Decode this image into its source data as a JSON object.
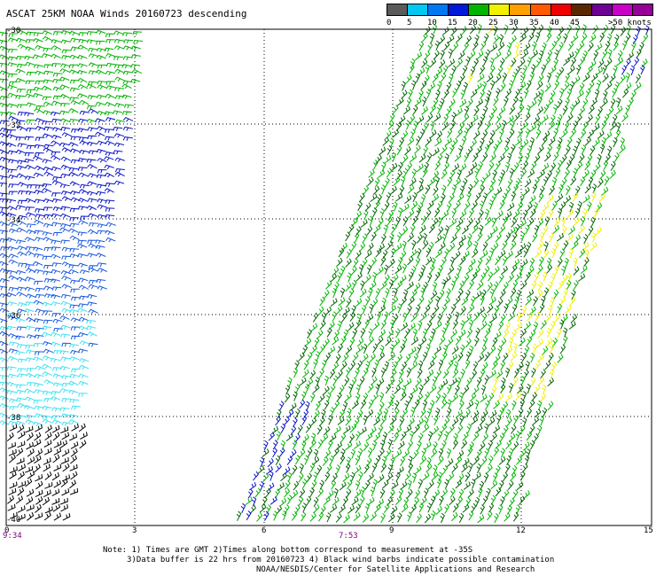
{
  "title": "ASCAT 25KM NOAA Winds 20160723 descending",
  "colorbar": {
    "labels": [
      "0",
      "5",
      "10",
      "15",
      "20",
      "25",
      "30",
      "35",
      "40",
      "45",
      ">50 knots"
    ],
    "colors": [
      "#5a5a5a",
      "#00c8f0",
      "#0078f0",
      "#0018d8",
      "#00b400",
      "#f0f000",
      "#ffa000",
      "#ff5a00",
      "#f00000",
      "#5a2800",
      "#6e0096",
      "#c800c8",
      "#960096"
    ]
  },
  "axes": {
    "lat_labels": [
      "-30",
      "-32",
      "-34",
      "-36",
      "-38",
      "-40"
    ],
    "lon_labels": [
      "0",
      "3",
      "6",
      "9",
      "12",
      "15"
    ]
  },
  "times": [
    "9:34",
    "7:53"
  ],
  "notes": {
    "line1": "Note: 1) Times are GMT 2)Times along bottom correspond to measurement at -35S",
    "line2": "3)Data buffer is 22 hrs from 20160723 4) Black wind barbs indicate possible contamination",
    "line3": "NOAA/NESDIS/Center for Satellite Applications and Research"
  },
  "legend_colors": {
    "calm_contaminated": "#000000",
    "light": "#40e0f0",
    "moderate": "#1a5ae0",
    "fresh": "#0a14c8",
    "strong_green": "#00b400",
    "dark_green": "#006400",
    "high": "#f0f000"
  }
}
